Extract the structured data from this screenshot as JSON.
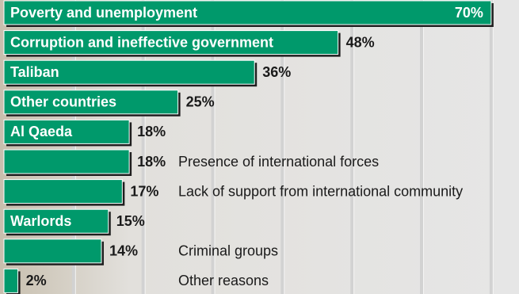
{
  "chart_data": {
    "type": "hbar",
    "categories": [
      "Poverty and unemployment",
      "Corruption and ineffective government",
      "Taliban",
      "Other countries",
      "Al Qaeda",
      "Presence of international forces",
      "Lack of support from international community",
      "Warlords",
      "Criminal groups",
      "Other reasons"
    ],
    "values": [
      70,
      48,
      36,
      25,
      18,
      18,
      17,
      15,
      14,
      2
    ],
    "value_labels": [
      "70%",
      "48%",
      "36%",
      "25%",
      "18%",
      "18%",
      "17%",
      "15%",
      "14%",
      "2%"
    ],
    "color": "#00996b",
    "xlim": [
      0,
      74
    ],
    "xticks": [
      10,
      20,
      30,
      40,
      50,
      60,
      70
    ],
    "grid": true
  }
}
